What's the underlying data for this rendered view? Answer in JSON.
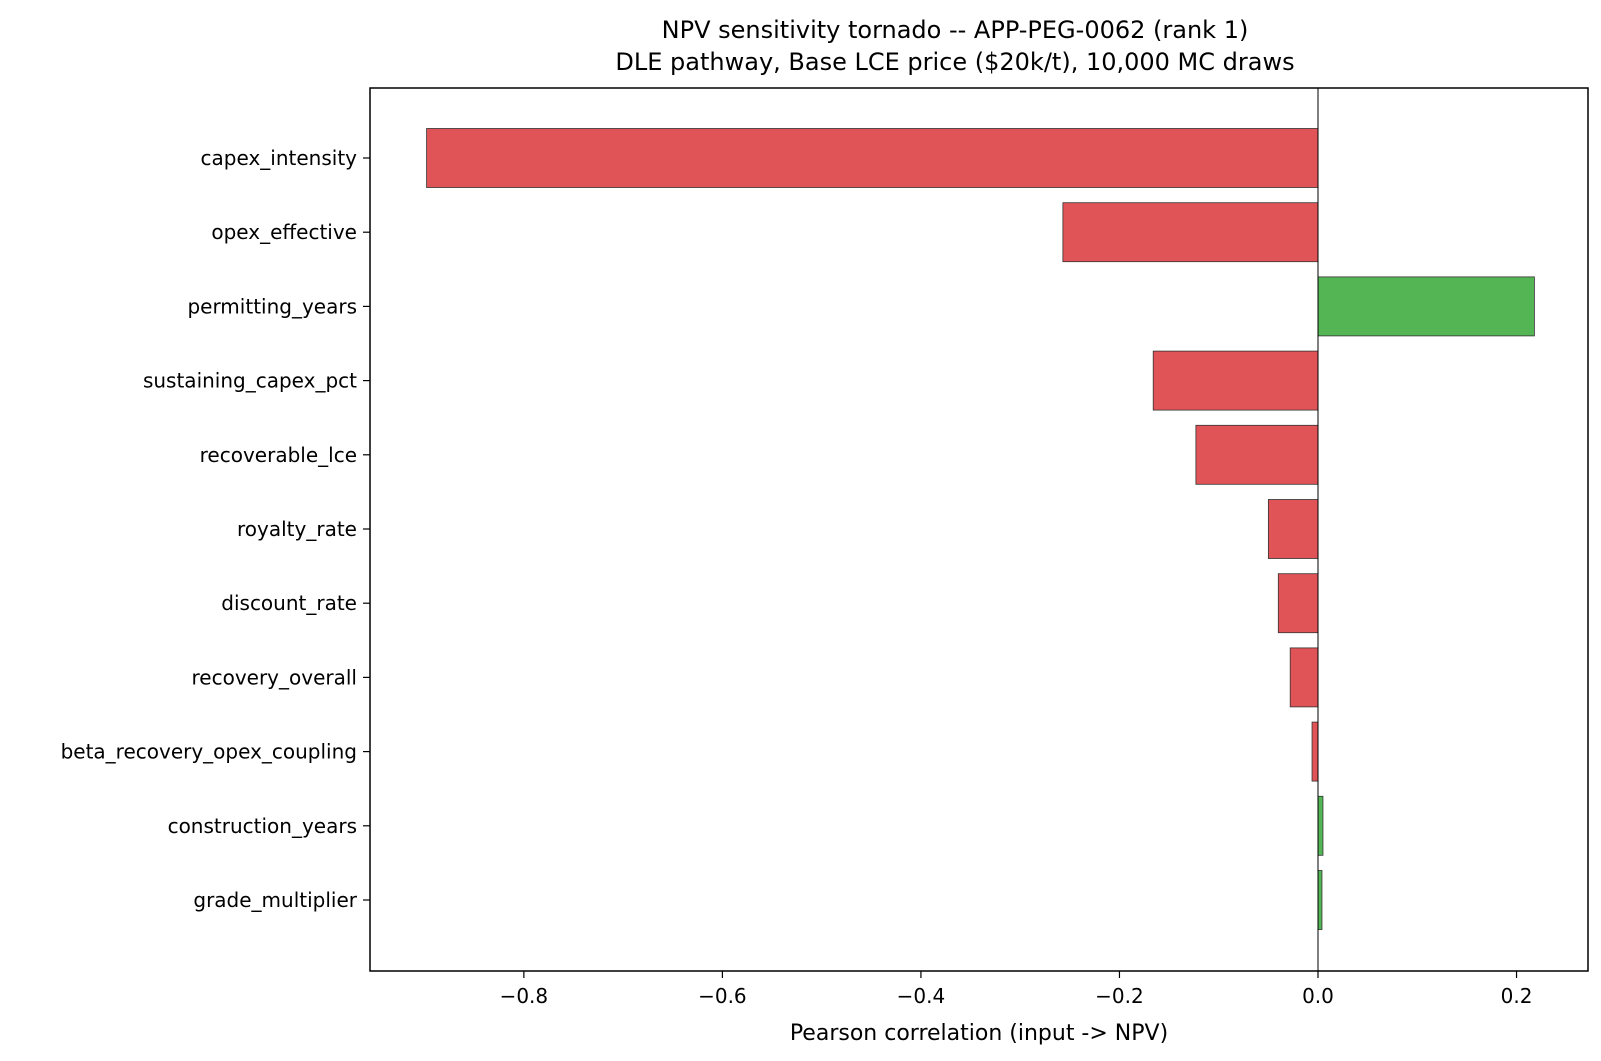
{
  "chart_data": {
    "type": "bar",
    "orientation": "horizontal",
    "title": "NPV sensitivity tornado -- APP-PEG-0062 (rank 1)",
    "subtitle": "DLE pathway, Base LCE price ($20k/t), 10,000 MC draws",
    "xlabel": "Pearson correlation (input -> NPV)",
    "ylabel": "",
    "xlim": [
      -0.955,
      0.272
    ],
    "xticks": [
      -0.8,
      -0.6,
      -0.4,
      -0.2,
      0.0,
      0.2
    ],
    "xtick_labels": [
      "−0.8",
      "−0.6",
      "−0.4",
      "−0.2",
      "0.0",
      "0.2"
    ],
    "categories": [
      "capex_intensity",
      "opex_effective",
      "permitting_years",
      "sustaining_capex_pct",
      "recoverable_lce",
      "royalty_rate",
      "discount_rate",
      "recovery_overall",
      "beta_recovery_opex_coupling",
      "construction_years",
      "grade_multiplier"
    ],
    "values": [
      -0.898,
      -0.257,
      0.218,
      -0.166,
      -0.123,
      -0.05,
      -0.04,
      -0.028,
      -0.006,
      0.005,
      0.004
    ],
    "grid": false,
    "legend": "none",
    "colors": {
      "negative": "#e05356",
      "positive": "#54b554",
      "edge": "#333333",
      "zero_line": "#000000"
    }
  }
}
